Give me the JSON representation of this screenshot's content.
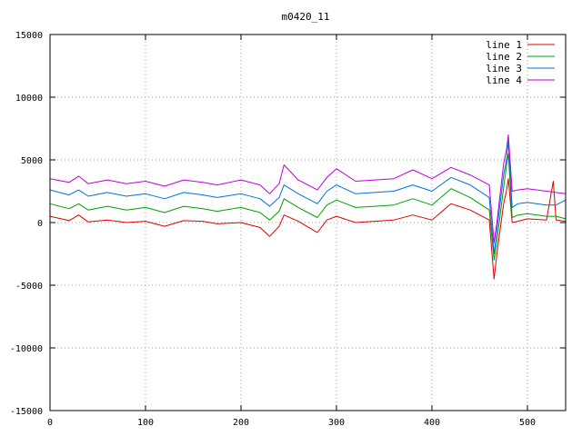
{
  "chart_data": {
    "type": "line",
    "title": "m0420_11",
    "xlabel": "",
    "ylabel": "",
    "xlim": [
      0,
      540
    ],
    "ylim": [
      -15000,
      15000
    ],
    "x_ticks": [
      0,
      100,
      200,
      300,
      400,
      500
    ],
    "y_ticks": [
      -15000,
      -10000,
      -5000,
      0,
      5000,
      10000,
      15000
    ],
    "grid": true,
    "legend_position": "top-right",
    "series": [
      {
        "name": "line 1",
        "color": "#e00000",
        "points": [
          [
            0,
            500
          ],
          [
            20,
            150
          ],
          [
            30,
            600
          ],
          [
            40,
            50
          ],
          [
            60,
            200
          ],
          [
            80,
            0
          ],
          [
            100,
            100
          ],
          [
            120,
            -300
          ],
          [
            140,
            150
          ],
          [
            160,
            100
          ],
          [
            175,
            -100
          ],
          [
            200,
            0
          ],
          [
            220,
            -400
          ],
          [
            230,
            -1100
          ],
          [
            240,
            -300
          ],
          [
            245,
            600
          ],
          [
            260,
            100
          ],
          [
            280,
            -800
          ],
          [
            290,
            200
          ],
          [
            300,
            500
          ],
          [
            320,
            0
          ],
          [
            340,
            100
          ],
          [
            360,
            200
          ],
          [
            380,
            600
          ],
          [
            400,
            200
          ],
          [
            420,
            1500
          ],
          [
            440,
            1000
          ],
          [
            460,
            200
          ],
          [
            465,
            -4500
          ],
          [
            468,
            -2500
          ],
          [
            475,
            1500
          ],
          [
            478,
            2500
          ],
          [
            480,
            3500
          ],
          [
            484,
            0
          ],
          [
            490,
            100
          ],
          [
            500,
            300
          ],
          [
            520,
            200
          ],
          [
            527,
            3300
          ],
          [
            530,
            200
          ],
          [
            540,
            100
          ]
        ]
      },
      {
        "name": "line 2",
        "color": "#00a000",
        "points": [
          [
            0,
            1500
          ],
          [
            20,
            1100
          ],
          [
            30,
            1500
          ],
          [
            40,
            1000
          ],
          [
            60,
            1300
          ],
          [
            80,
            1000
          ],
          [
            100,
            1200
          ],
          [
            120,
            800
          ],
          [
            140,
            1300
          ],
          [
            160,
            1100
          ],
          [
            175,
            900
          ],
          [
            200,
            1200
          ],
          [
            220,
            800
          ],
          [
            230,
            200
          ],
          [
            240,
            900
          ],
          [
            245,
            1900
          ],
          [
            260,
            1200
          ],
          [
            280,
            400
          ],
          [
            290,
            1400
          ],
          [
            300,
            1800
          ],
          [
            320,
            1200
          ],
          [
            340,
            1300
          ],
          [
            360,
            1400
          ],
          [
            380,
            1900
          ],
          [
            400,
            1400
          ],
          [
            420,
            2700
          ],
          [
            440,
            2000
          ],
          [
            460,
            1000
          ],
          [
            465,
            -3000
          ],
          [
            468,
            -1500
          ],
          [
            475,
            2800
          ],
          [
            478,
            4500
          ],
          [
            480,
            5500
          ],
          [
            484,
            400
          ],
          [
            490,
            600
          ],
          [
            500,
            700
          ],
          [
            520,
            500
          ],
          [
            530,
            500
          ],
          [
            540,
            300
          ]
        ]
      },
      {
        "name": "line 3",
        "color": "#0070e0",
        "points": [
          [
            0,
            2600
          ],
          [
            20,
            2200
          ],
          [
            30,
            2600
          ],
          [
            40,
            2100
          ],
          [
            60,
            2400
          ],
          [
            80,
            2100
          ],
          [
            100,
            2300
          ],
          [
            120,
            1900
          ],
          [
            140,
            2400
          ],
          [
            160,
            2200
          ],
          [
            175,
            2000
          ],
          [
            200,
            2300
          ],
          [
            220,
            1900
          ],
          [
            230,
            1300
          ],
          [
            240,
            2000
          ],
          [
            245,
            3000
          ],
          [
            260,
            2300
          ],
          [
            280,
            1500
          ],
          [
            290,
            2500
          ],
          [
            300,
            3000
          ],
          [
            320,
            2300
          ],
          [
            340,
            2400
          ],
          [
            360,
            2500
          ],
          [
            380,
            3000
          ],
          [
            400,
            2500
          ],
          [
            420,
            3600
          ],
          [
            440,
            3000
          ],
          [
            460,
            2000
          ],
          [
            465,
            -2500
          ],
          [
            468,
            -600
          ],
          [
            475,
            3800
          ],
          [
            478,
            5000
          ],
          [
            480,
            6500
          ],
          [
            484,
            1200
          ],
          [
            490,
            1500
          ],
          [
            500,
            1600
          ],
          [
            520,
            1400
          ],
          [
            530,
            1400
          ],
          [
            540,
            1800
          ]
        ]
      },
      {
        "name": "line 4",
        "color": "#c000e0",
        "points": [
          [
            0,
            3500
          ],
          [
            20,
            3200
          ],
          [
            30,
            3700
          ],
          [
            40,
            3100
          ],
          [
            60,
            3400
          ],
          [
            80,
            3100
          ],
          [
            100,
            3300
          ],
          [
            120,
            2900
          ],
          [
            140,
            3400
          ],
          [
            160,
            3200
          ],
          [
            175,
            3000
          ],
          [
            200,
            3400
          ],
          [
            220,
            3000
          ],
          [
            230,
            2300
          ],
          [
            240,
            3100
          ],
          [
            245,
            4600
          ],
          [
            260,
            3400
          ],
          [
            280,
            2600
          ],
          [
            290,
            3600
          ],
          [
            300,
            4300
          ],
          [
            320,
            3300
          ],
          [
            340,
            3400
          ],
          [
            360,
            3500
          ],
          [
            380,
            4200
          ],
          [
            400,
            3500
          ],
          [
            420,
            4400
          ],
          [
            440,
            3800
          ],
          [
            460,
            3000
          ],
          [
            465,
            -1600
          ],
          [
            468,
            0
          ],
          [
            475,
            4700
          ],
          [
            478,
            5800
          ],
          [
            480,
            7000
          ],
          [
            484,
            2500
          ],
          [
            490,
            2600
          ],
          [
            500,
            2700
          ],
          [
            520,
            2500
          ],
          [
            530,
            2400
          ],
          [
            540,
            2300
          ]
        ]
      }
    ]
  }
}
